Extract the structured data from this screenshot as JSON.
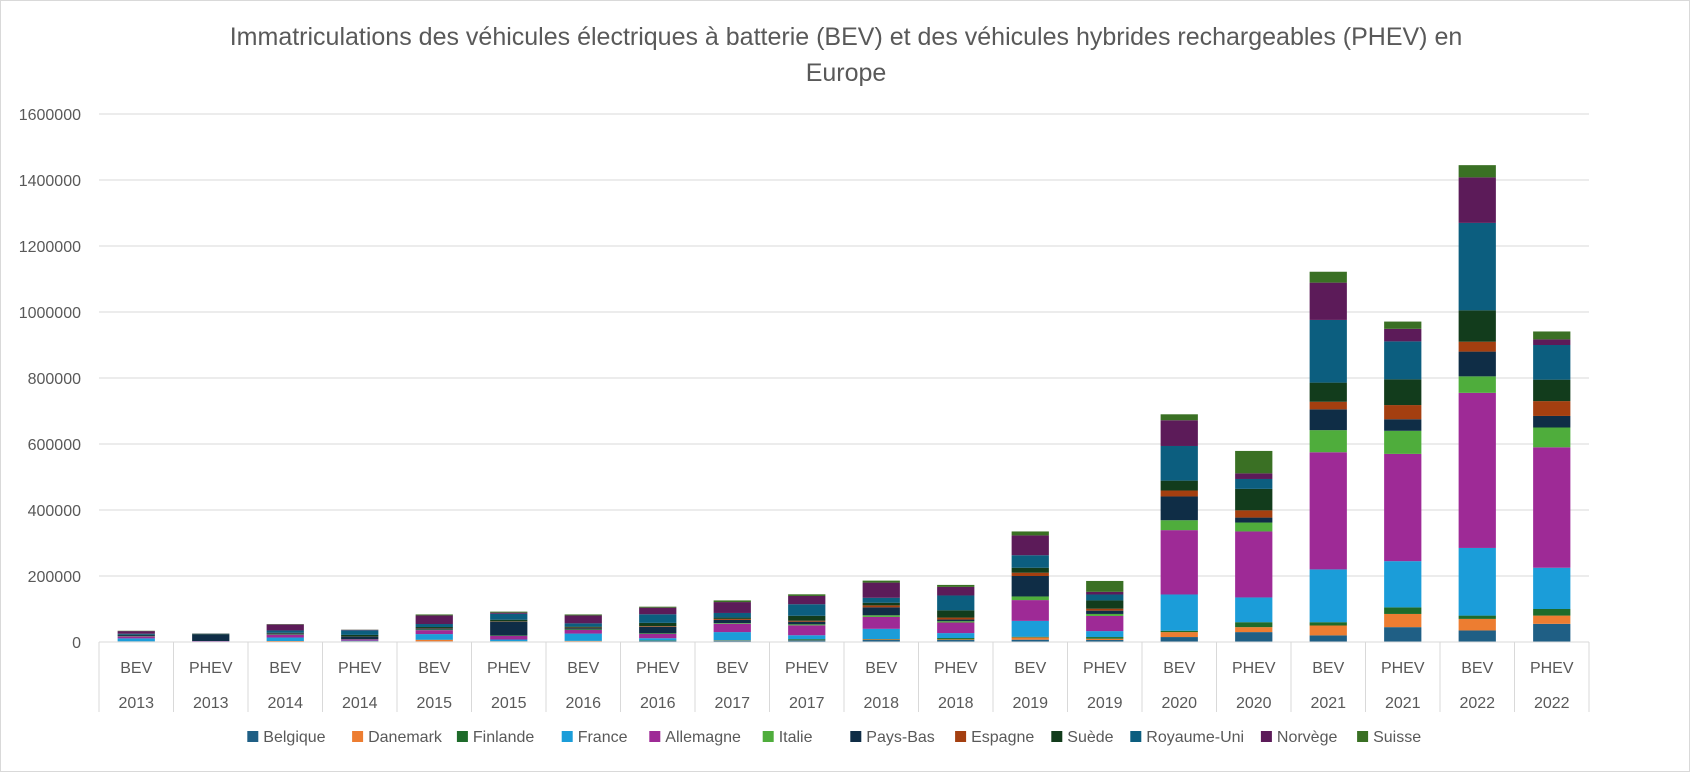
{
  "chart_data": {
    "type": "bar",
    "stacked": true,
    "title": "Immatriculations des véhicules électriques à batterie (BEV) et des véhicules hybrides rechargeables (PHEV) en Europe",
    "title_lines": [
      "Immatriculations des véhicules électriques à batterie (BEV) et des véhicules hybrides rechargeables (PHEV) en",
      "Europe"
    ],
    "categories": [
      {
        "type": "BEV",
        "year": "2013"
      },
      {
        "type": "PHEV",
        "year": "2013"
      },
      {
        "type": "BEV",
        "year": "2014"
      },
      {
        "type": "PHEV",
        "year": "2014"
      },
      {
        "type": "BEV",
        "year": "2015"
      },
      {
        "type": "PHEV",
        "year": "2015"
      },
      {
        "type": "BEV",
        "year": "2016"
      },
      {
        "type": "PHEV",
        "year": "2016"
      },
      {
        "type": "BEV",
        "year": "2017"
      },
      {
        "type": "PHEV",
        "year": "2017"
      },
      {
        "type": "BEV",
        "year": "2018"
      },
      {
        "type": "PHEV",
        "year": "2018"
      },
      {
        "type": "BEV",
        "year": "2019"
      },
      {
        "type": "PHEV",
        "year": "2019"
      },
      {
        "type": "BEV",
        "year": "2020"
      },
      {
        "type": "PHEV",
        "year": "2020"
      },
      {
        "type": "BEV",
        "year": "2021"
      },
      {
        "type": "PHEV",
        "year": "2021"
      },
      {
        "type": "BEV",
        "year": "2022"
      },
      {
        "type": "PHEV",
        "year": "2022"
      }
    ],
    "ylim": [
      0,
      1600000
    ],
    "yticks": [
      "0",
      "200000",
      "400000",
      "600000",
      "800000",
      "1000000",
      "1200000",
      "1400000",
      "1600000"
    ],
    "grid": true,
    "legend_position": "bottom",
    "series": [
      {
        "name": "Belgique",
        "color": "#1f5f85",
        "values": [
          1000,
          1000,
          1500,
          1500,
          2000,
          1500,
          2000,
          3000,
          3000,
          5000,
          6000,
          6000,
          7000,
          6000,
          15000,
          30000,
          20000,
          45000,
          35000,
          55000
        ]
      },
      {
        "name": "Danemark",
        "color": "#ed7d31",
        "values": [
          1000,
          0,
          1500,
          500,
          4500,
          500,
          1000,
          500,
          1000,
          500,
          2000,
          2000,
          7000,
          4000,
          15000,
          15000,
          30000,
          40000,
          35000,
          25000
        ]
      },
      {
        "name": "Finlande",
        "color": "#1e6b2a",
        "values": [
          0,
          0,
          0,
          500,
          500,
          500,
          500,
          1000,
          1000,
          3000,
          1000,
          4000,
          2000,
          5000,
          4000,
          15000,
          10000,
          20000,
          10000,
          20000
        ]
      },
      {
        "name": "France",
        "color": "#1b9dd9",
        "values": [
          9000,
          1000,
          10500,
          1500,
          17000,
          5000,
          22000,
          7000,
          25000,
          12000,
          31000,
          15000,
          48000,
          18000,
          110000,
          75000,
          160000,
          140000,
          205000,
          125000
        ]
      },
      {
        "name": "Allemagne",
        "color": "#9e2a96",
        "values": [
          6000,
          1000,
          8500,
          4000,
          12000,
          11000,
          11000,
          13000,
          25000,
          30000,
          36000,
          32000,
          63000,
          46000,
          195000,
          200000,
          355000,
          325000,
          470000,
          365000
        ]
      },
      {
        "name": "Italie",
        "color": "#4fad3c",
        "values": [
          1000,
          0,
          1000,
          500,
          1500,
          1000,
          1500,
          1500,
          2000,
          3000,
          5000,
          4000,
          11000,
          6000,
          30000,
          27000,
          67000,
          70000,
          50000,
          60000
        ]
      },
      {
        "name": "Pays-Bas",
        "color": "#0f2d46",
        "values": [
          3000,
          20000,
          3000,
          8000,
          4000,
          42000,
          4000,
          20000,
          10000,
          8000,
          24000,
          5000,
          62000,
          10000,
          72000,
          15000,
          63000,
          35000,
          75000,
          35000
        ]
      },
      {
        "name": "Espagne",
        "color": "#a43f10",
        "values": [
          0,
          0,
          500,
          500,
          1000,
          1000,
          1500,
          2000,
          3000,
          3000,
          6000,
          6000,
          10000,
          6000,
          18000,
          22000,
          23000,
          43000,
          30000,
          45000
        ]
      },
      {
        "name": "Suède",
        "color": "#123c1c",
        "values": [
          1000,
          1000,
          1500,
          4500,
          3000,
          5000,
          3000,
          10000,
          4000,
          15000,
          8000,
          22000,
          15000,
          25000,
          30000,
          65000,
          58000,
          78000,
          95000,
          65000
        ]
      },
      {
        "name": "Royaume-Uni",
        "color": "#0c5e7f",
        "values": [
          3000,
          1000,
          7000,
          14000,
          9000,
          18000,
          10000,
          26000,
          14000,
          35000,
          15000,
          45000,
          38000,
          18000,
          105000,
          30000,
          190000,
          115000,
          265000,
          105000
        ]
      },
      {
        "name": "Norvège",
        "color": "#5c1b59",
        "values": [
          8000,
          500,
          18000,
          1500,
          26000,
          3500,
          24000,
          20000,
          33000,
          25000,
          46000,
          26000,
          60000,
          8000,
          78000,
          17000,
          113000,
          38000,
          138000,
          17000
        ]
      },
      {
        "name": "Suisse",
        "color": "#3a7024",
        "values": [
          1000,
          500,
          1000,
          500,
          3000,
          3000,
          3000,
          3000,
          5000,
          5000,
          6000,
          6000,
          12000,
          33000,
          18000,
          68000,
          33000,
          22000,
          37000,
          24000
        ]
      }
    ]
  }
}
